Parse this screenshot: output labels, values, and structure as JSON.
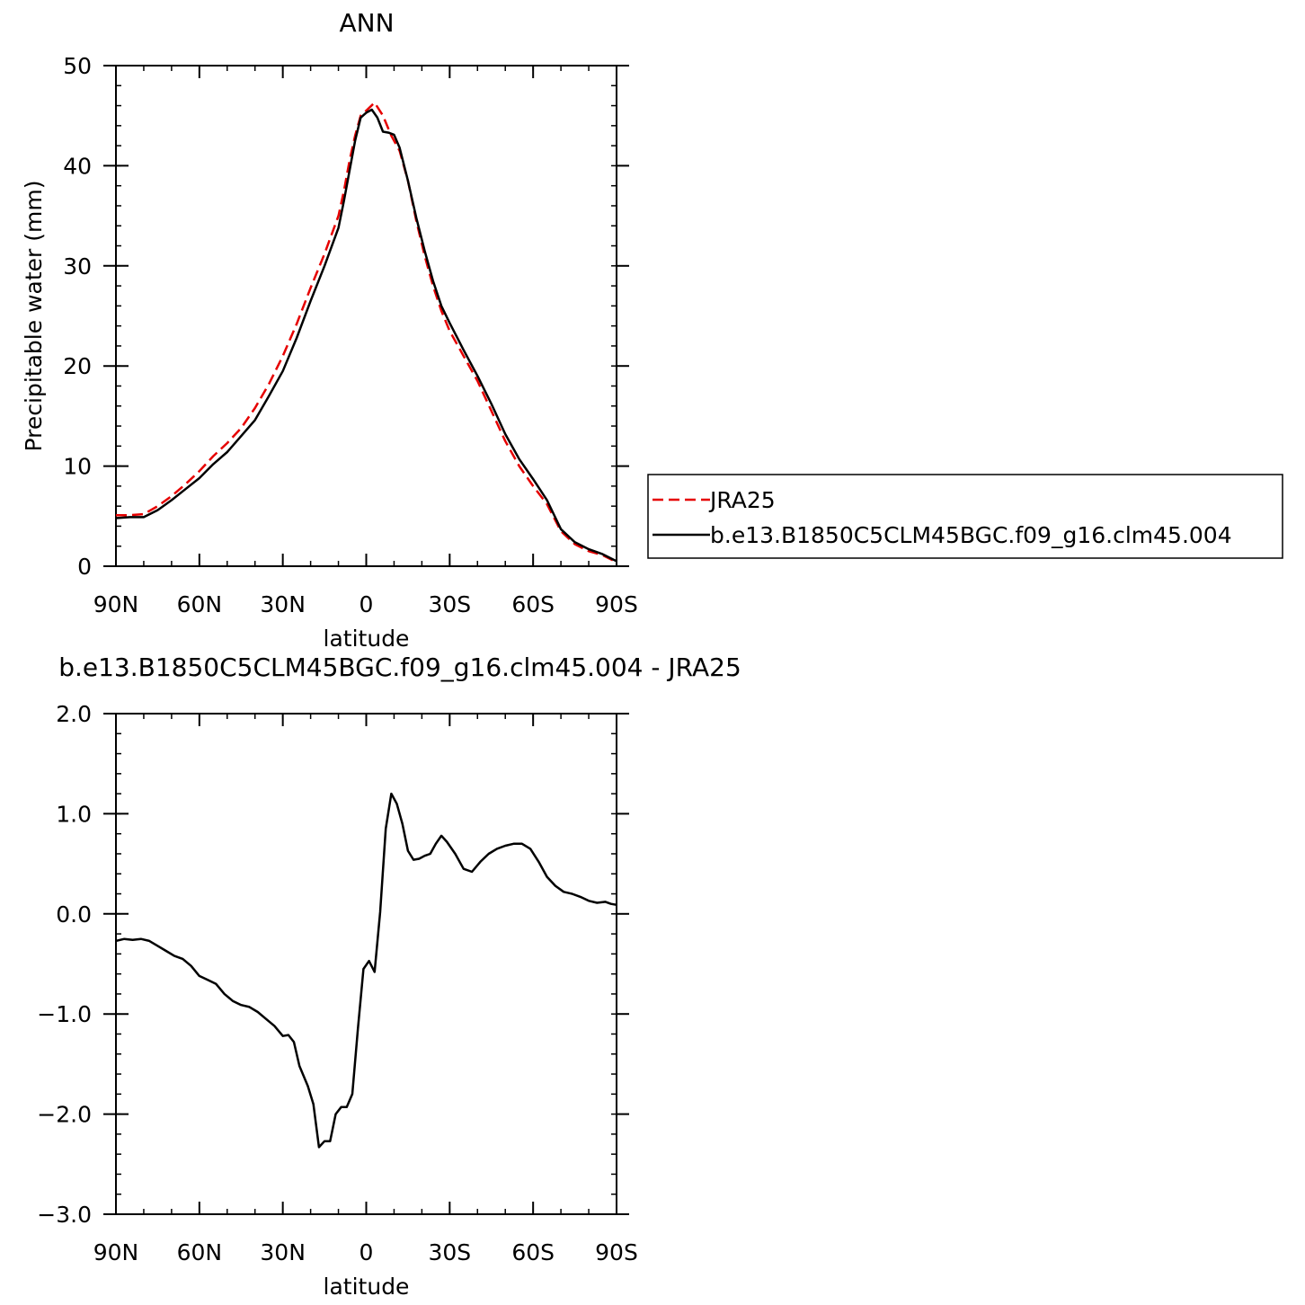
{
  "chart_data": [
    {
      "type": "line",
      "title": "ANN",
      "xlabel": "latitude",
      "ylabel": "Precipitable water (mm)",
      "xlim": [
        90,
        -90
      ],
      "ylim": [
        0,
        50
      ],
      "x_ticks": [
        90,
        60,
        30,
        0,
        -30,
        -60,
        -90
      ],
      "x_tick_labels": [
        "90N",
        "60N",
        "30N",
        "0",
        "30S",
        "60S",
        "90S"
      ],
      "y_ticks": [
        0,
        10,
        20,
        30,
        40,
        50
      ],
      "y_tick_labels": [
        "0",
        "10",
        "20",
        "30",
        "40",
        "50"
      ],
      "legend": {
        "placement": "right"
      },
      "series": [
        {
          "name": "JRA25",
          "color": "#e60000",
          "style": "dashed",
          "points": [
            [
              90,
              5.1
            ],
            [
              85,
              5.1
            ],
            [
              80,
              5.2
            ],
            [
              75,
              6.0
            ],
            [
              70,
              7.0
            ],
            [
              65,
              8.2
            ],
            [
              60,
              9.5
            ],
            [
              55,
              11.0
            ],
            [
              50,
              12.3
            ],
            [
              45,
              13.8
            ],
            [
              40,
              15.8
            ],
            [
              35,
              18.2
            ],
            [
              30,
              21.0
            ],
            [
              25,
              24.2
            ],
            [
              20,
              27.8
            ],
            [
              15,
              31.2
            ],
            [
              10,
              35.0
            ],
            [
              8,
              37.5
            ],
            [
              6,
              40.5
            ],
            [
              4,
              43.0
            ],
            [
              2,
              45.0
            ],
            [
              0,
              45.5
            ],
            [
              -3,
              46.3
            ],
            [
              -6,
              45.0
            ],
            [
              -9,
              43.0
            ],
            [
              -12,
              41.5
            ],
            [
              -15,
              38.5
            ],
            [
              -18,
              34.5
            ],
            [
              -21,
              31.0
            ],
            [
              -24,
              28.0
            ],
            [
              -27,
              25.5
            ],
            [
              -30,
              23.5
            ],
            [
              -35,
              21.0
            ],
            [
              -40,
              18.5
            ],
            [
              -45,
              15.5
            ],
            [
              -50,
              12.5
            ],
            [
              -55,
              10.0
            ],
            [
              -60,
              8.0
            ],
            [
              -65,
              6.2
            ],
            [
              -70,
              3.5
            ],
            [
              -75,
              2.2
            ],
            [
              -80,
              1.5
            ],
            [
              -85,
              1.1
            ],
            [
              -90,
              0.4
            ]
          ]
        },
        {
          "name": "b.e13.B1850C5CLM45BGC.f09_g16.clm45.004",
          "color": "#000000",
          "style": "solid",
          "points": [
            [
              90,
              4.8
            ],
            [
              85,
              4.9
            ],
            [
              80,
              4.9
            ],
            [
              75,
              5.6
            ],
            [
              70,
              6.6
            ],
            [
              65,
              7.7
            ],
            [
              60,
              8.8
            ],
            [
              55,
              10.2
            ],
            [
              50,
              11.4
            ],
            [
              45,
              13.0
            ],
            [
              40,
              14.6
            ],
            [
              35,
              17.0
            ],
            [
              30,
              19.5
            ],
            [
              25,
              22.8
            ],
            [
              20,
              26.5
            ],
            [
              15,
              30.0
            ],
            [
              10,
              33.8
            ],
            [
              8,
              36.5
            ],
            [
              6,
              39.5
            ],
            [
              4,
              42.5
            ],
            [
              2,
              44.8
            ],
            [
              0,
              45.3
            ],
            [
              -2,
              45.6
            ],
            [
              -4,
              44.8
            ],
            [
              -6,
              43.4
            ],
            [
              -8,
              43.3
            ],
            [
              -10,
              43.1
            ],
            [
              -12,
              41.8
            ],
            [
              -15,
              38.5
            ],
            [
              -18,
              34.8
            ],
            [
              -21,
              31.5
            ],
            [
              -24,
              28.5
            ],
            [
              -27,
              26.0
            ],
            [
              -30,
              24.3
            ],
            [
              -35,
              21.6
            ],
            [
              -40,
              19.0
            ],
            [
              -45,
              16.2
            ],
            [
              -50,
              13.2
            ],
            [
              -55,
              10.7
            ],
            [
              -60,
              8.7
            ],
            [
              -65,
              6.6
            ],
            [
              -70,
              3.7
            ],
            [
              -75,
              2.4
            ],
            [
              -80,
              1.7
            ],
            [
              -85,
              1.2
            ],
            [
              -90,
              0.5
            ]
          ]
        }
      ]
    },
    {
      "type": "line",
      "title": "b.e13.B1850C5CLM45BGC.f09_g16.clm45.004 - JRA25",
      "xlabel": "latitude",
      "ylabel": "Precipitable water (mm)",
      "xlim": [
        90,
        -90
      ],
      "ylim": [
        -3.0,
        2.0
      ],
      "x_ticks": [
        90,
        60,
        30,
        0,
        -30,
        -60,
        -90
      ],
      "x_tick_labels": [
        "90N",
        "60N",
        "30N",
        "0",
        "30S",
        "60S",
        "90S"
      ],
      "y_ticks": [
        -3.0,
        -2.0,
        -1.0,
        0.0,
        1.0,
        2.0
      ],
      "y_tick_labels": [
        "−3.0",
        "−2.0",
        "−1.0",
        "0.0",
        "1.0",
        "2.0"
      ],
      "series": [
        {
          "color": "#000000",
          "style": "solid",
          "points": [
            [
              90,
              -0.27
            ],
            [
              87,
              -0.25
            ],
            [
              84,
              -0.26
            ],
            [
              81,
              -0.25
            ],
            [
              78,
              -0.27
            ],
            [
              75,
              -0.32
            ],
            [
              72,
              -0.37
            ],
            [
              69,
              -0.42
            ],
            [
              66,
              -0.45
            ],
            [
              63,
              -0.52
            ],
            [
              60,
              -0.62
            ],
            [
              57,
              -0.66
            ],
            [
              54,
              -0.7
            ],
            [
              51,
              -0.8
            ],
            [
              48,
              -0.87
            ],
            [
              45,
              -0.91
            ],
            [
              42,
              -0.93
            ],
            [
              39,
              -0.98
            ],
            [
              36,
              -1.05
            ],
            [
              33,
              -1.12
            ],
            [
              30,
              -1.22
            ],
            [
              28,
              -1.21
            ],
            [
              26,
              -1.28
            ],
            [
              24,
              -1.52
            ],
            [
              21,
              -1.72
            ],
            [
              19,
              -1.9
            ],
            [
              17,
              -2.33
            ],
            [
              15,
              -2.27
            ],
            [
              13,
              -2.27
            ],
            [
              11,
              -2.0
            ],
            [
              9,
              -1.93
            ],
            [
              7,
              -1.93
            ],
            [
              5,
              -1.8
            ],
            [
              3,
              -1.15
            ],
            [
              1,
              -0.55
            ],
            [
              -1,
              -0.47
            ],
            [
              -3,
              -0.58
            ],
            [
              -5,
              0.02
            ],
            [
              -7,
              0.85
            ],
            [
              -9,
              1.2
            ],
            [
              -11,
              1.1
            ],
            [
              -13,
              0.9
            ],
            [
              -15,
              0.63
            ],
            [
              -17,
              0.54
            ],
            [
              -19,
              0.55
            ],
            [
              -21,
              0.58
            ],
            [
              -23,
              0.6
            ],
            [
              -25,
              0.7
            ],
            [
              -27,
              0.78
            ],
            [
              -29,
              0.72
            ],
            [
              -32,
              0.6
            ],
            [
              -35,
              0.45
            ],
            [
              -38,
              0.42
            ],
            [
              -41,
              0.52
            ],
            [
              -44,
              0.6
            ],
            [
              -47,
              0.65
            ],
            [
              -50,
              0.68
            ],
            [
              -53,
              0.7
            ],
            [
              -56,
              0.7
            ],
            [
              -59,
              0.65
            ],
            [
              -62,
              0.52
            ],
            [
              -65,
              0.37
            ],
            [
              -68,
              0.28
            ],
            [
              -71,
              0.22
            ],
            [
              -74,
              0.2
            ],
            [
              -77,
              0.17
            ],
            [
              -80,
              0.13
            ],
            [
              -83,
              0.11
            ],
            [
              -86,
              0.12
            ],
            [
              -88,
              0.1
            ],
            [
              -90,
              0.09
            ]
          ]
        }
      ]
    }
  ]
}
